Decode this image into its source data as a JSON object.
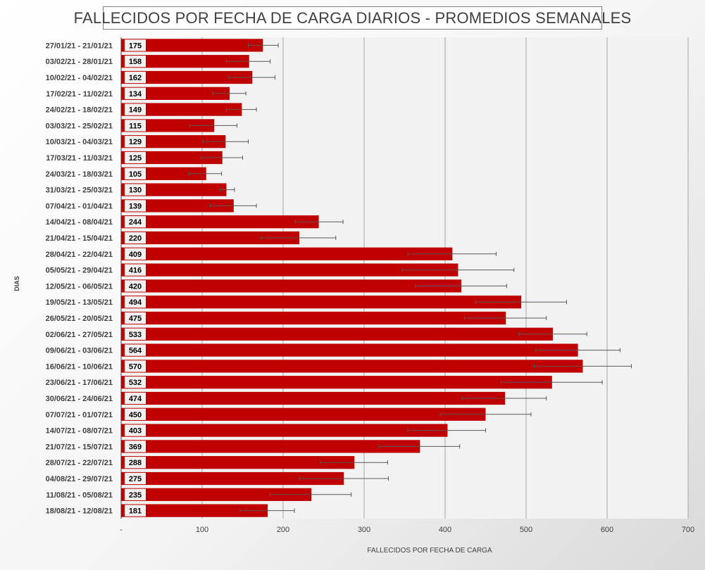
{
  "chart_data": {
    "type": "bar",
    "orientation": "horizontal",
    "title": "FALLECIDOS POR FECHA DE CARGA DIARIOS - PROMEDIOS SEMANALES",
    "xlabel": "FALLECIDOS POR FECHA DE CARGA",
    "ylabel": "DIAS",
    "xlim": [
      0,
      700
    ],
    "x_ticks": [
      "-",
      "100",
      "200",
      "300",
      "400",
      "500",
      "600",
      "700"
    ],
    "grid": "vertical",
    "bar_color": "#c00000",
    "categories": [
      "27/01/21 - 21/01/21",
      "03/02/21 - 28/01/21",
      "10/02/21 - 04/02/21",
      "17/02/21 - 11/02/21",
      "24/02/21 - 18/02/21",
      "03/03/21 - 25/02/21",
      "10/03/21 - 04/03/21",
      "17/03/21 - 11/03/21",
      "24/03/21 - 18/03/21",
      "31/03/21 - 25/03/21",
      "07/04/21 - 01/04/21",
      "14/04/21 - 08/04/21",
      "21/04/21 - 15/04/21",
      "28/04/21 - 22/04/21",
      "05/05/21 - 29/04/21",
      "12/05/21 - 06/05/21",
      "19/05/21 - 13/05/21",
      "26/05/21 - 20/05/21",
      "02/06/21 - 27/05/21",
      "09/06/21 - 03/06/21",
      "16/06/21 - 10/06/21",
      "23/06/21 - 17/06/21",
      "30/06/21 - 24/06/21",
      "07/07/21 - 01/07/21",
      "14/07/21 - 08/07/21",
      "21/07/21 - 15/07/21",
      "28/07/21 - 22/07/21",
      "04/08/21 - 29/07/21",
      "11/08/21 - 05/08/21",
      "18/08/21 - 12/08/21"
    ],
    "values": [
      175,
      158,
      162,
      134,
      149,
      115,
      129,
      125,
      105,
      130,
      139,
      244,
      220,
      409,
      416,
      420,
      494,
      475,
      533,
      564,
      570,
      532,
      474,
      450,
      403,
      369,
      288,
      275,
      235,
      181
    ],
    "error_low": [
      157,
      130,
      133,
      113,
      130,
      85,
      101,
      99,
      84,
      122,
      110,
      215,
      173,
      354,
      347,
      363,
      438,
      424,
      491,
      512,
      510,
      469,
      421,
      394,
      354,
      319,
      246,
      220,
      184,
      147
    ],
    "error_high": [
      194,
      184,
      190,
      154,
      167,
      143,
      157,
      150,
      124,
      140,
      167,
      274,
      265,
      463,
      485,
      476,
      550,
      525,
      575,
      616,
      630,
      594,
      525,
      506,
      450,
      418,
      329,
      330,
      284,
      214
    ]
  }
}
